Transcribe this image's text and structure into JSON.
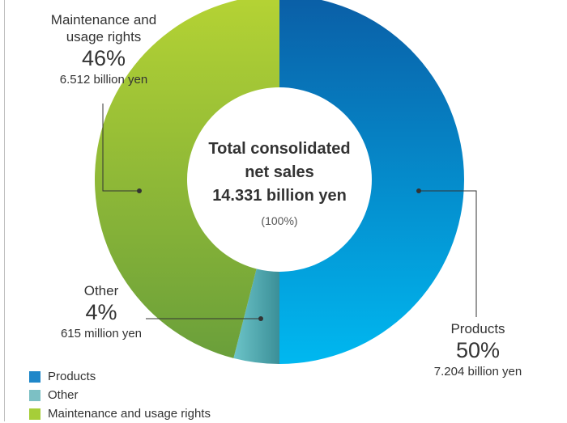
{
  "center": {
    "title_line1": "Total consolidated",
    "title_line2": "net sales",
    "title_line3": "14.331 billion yen",
    "percent": "(100%)"
  },
  "labels": {
    "maintenance": {
      "line1": "Maintenance and",
      "line2": "usage rights",
      "percent": "46%",
      "amount": "6.512 billion yen"
    },
    "other": {
      "line1": "Other",
      "percent": "4%",
      "amount": "615 million yen"
    },
    "products": {
      "line1": "Products",
      "percent": "50%",
      "amount": "7.204 billion yen"
    }
  },
  "legend": [
    {
      "label": "Products",
      "color": "#1f87c9"
    },
    {
      "label": "Other",
      "color": "#7cc0c4"
    },
    {
      "label": "Maintenance and usage rights",
      "color": "#a6ce39"
    }
  ],
  "chart_data": {
    "type": "pie",
    "categories": [
      "Products",
      "Other",
      "Maintenance and usage rights"
    ],
    "values": [
      50,
      4,
      46
    ],
    "amounts": [
      "7.204 billion yen",
      "615 million yen",
      "6.512 billion yen"
    ],
    "total": "14.331 billion yen",
    "donut": true,
    "legend_position": "bottom-left"
  }
}
